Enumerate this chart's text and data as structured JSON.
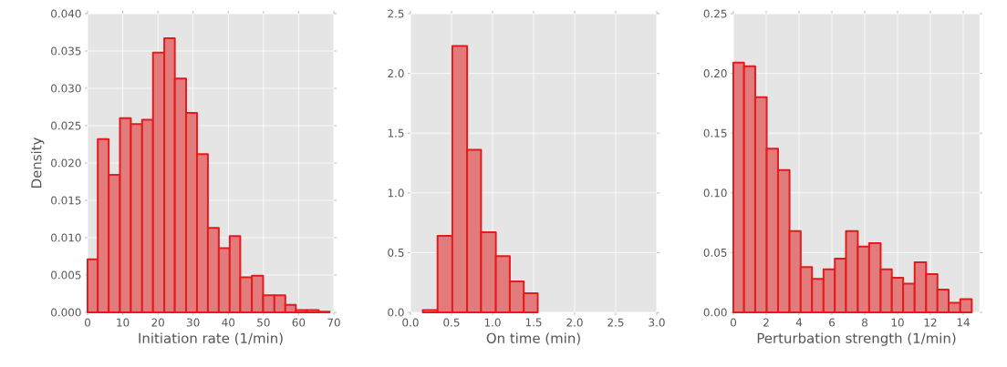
{
  "chart_data": [
    {
      "type": "histogram",
      "xlabel": "Initiation rate (1/min)",
      "ylabel": "Density",
      "color": "#e27c7c",
      "grid": true,
      "bins": [
        0,
        2.9,
        6.0,
        9.2,
        12.3,
        15.5,
        18.6,
        21.8,
        24.8,
        28.0,
        31.1,
        34.2,
        37.3,
        40.4,
        43.4,
        46.7,
        49.9,
        53.1,
        56.2,
        59.2,
        62.4,
        65.7,
        68.8
      ],
      "values": [
        0.0071,
        0.0232,
        0.0184,
        0.026,
        0.0252,
        0.0258,
        0.0348,
        0.0367,
        0.0313,
        0.0267,
        0.0212,
        0.0113,
        0.0086,
        0.0102,
        0.0047,
        0.0049,
        0.0023,
        0.0023,
        0.001,
        0.0003,
        0.0003,
        0.0001
      ],
      "xlim": [
        0,
        70
      ],
      "ylim": [
        0,
        0.04
      ],
      "xticks": [
        0,
        10,
        20,
        30,
        40,
        50,
        60,
        70
      ],
      "yticks": [
        {
          "value": 0,
          "label": "0.000"
        },
        {
          "value": 0.005,
          "label": "0.005"
        },
        {
          "value": 0.01,
          "label": "0.010"
        },
        {
          "value": 0.015,
          "label": "0.015"
        },
        {
          "value": 0.02,
          "label": "0.020"
        },
        {
          "value": 0.025,
          "label": "0.025"
        },
        {
          "value": 0.03,
          "label": "0.030"
        },
        {
          "value": 0.035,
          "label": "0.035"
        },
        {
          "value": 0.04,
          "label": "0.040"
        }
      ]
    },
    {
      "type": "histogram",
      "xlabel": "On time (min)",
      "color": "#e27c7c",
      "grid": true,
      "bins": [
        0.15,
        0.33,
        0.51,
        0.69,
        0.86,
        1.04,
        1.21,
        1.38,
        1.55
      ],
      "values": [
        0.02,
        0.64,
        2.23,
        1.36,
        0.67,
        0.47,
        0.26,
        0.16
      ],
      "xlim": [
        0,
        3
      ],
      "ylim": [
        0,
        2.5
      ],
      "xticks": [
        {
          "value": 0,
          "label": "0.0"
        },
        {
          "value": 0.5,
          "label": "0.5"
        },
        {
          "value": 1,
          "label": "1.0"
        },
        {
          "value": 1.5,
          "label": "1.5"
        },
        {
          "value": 2,
          "label": "2.0"
        },
        {
          "value": 2.5,
          "label": "2.5"
        },
        {
          "value": 3,
          "label": "3.0"
        }
      ],
      "yticks": [
        {
          "value": 0,
          "label": "0.0"
        },
        {
          "value": 0.5,
          "label": "0.5"
        },
        {
          "value": 1,
          "label": "1.0"
        },
        {
          "value": 1.5,
          "label": "1.5"
        },
        {
          "value": 2,
          "label": "2.0"
        },
        {
          "value": 2.5,
          "label": "2.5"
        }
      ]
    },
    {
      "type": "histogram",
      "xlabel": "Perturbation strength (1/min)",
      "color": "#e27c7c",
      "grid": true,
      "bins": [
        0,
        0.65,
        1.33,
        2.03,
        2.72,
        3.42,
        4.1,
        4.79,
        5.49,
        6.18,
        6.86,
        7.58,
        8.27,
        8.97,
        9.65,
        10.34,
        11.04,
        11.74,
        12.43,
        13.11,
        13.82,
        14.52
      ],
      "values": [
        0.209,
        0.206,
        0.18,
        0.137,
        0.119,
        0.068,
        0.038,
        0.028,
        0.036,
        0.045,
        0.068,
        0.055,
        0.058,
        0.036,
        0.029,
        0.024,
        0.042,
        0.032,
        0.019,
        0.008,
        0.011
      ],
      "xlim": [
        0,
        15
      ],
      "ylim": [
        0,
        0.25
      ],
      "xticks": [
        0,
        2,
        4,
        6,
        8,
        10,
        12,
        14
      ],
      "yticks": [
        {
          "value": 0,
          "label": "0.00"
        },
        {
          "value": 0.05,
          "label": "0.05"
        },
        {
          "value": 0.1,
          "label": "0.10"
        },
        {
          "value": 0.15,
          "label": "0.15"
        },
        {
          "value": 0.2,
          "label": "0.20"
        },
        {
          "value": 0.25,
          "label": "0.25"
        }
      ]
    }
  ]
}
